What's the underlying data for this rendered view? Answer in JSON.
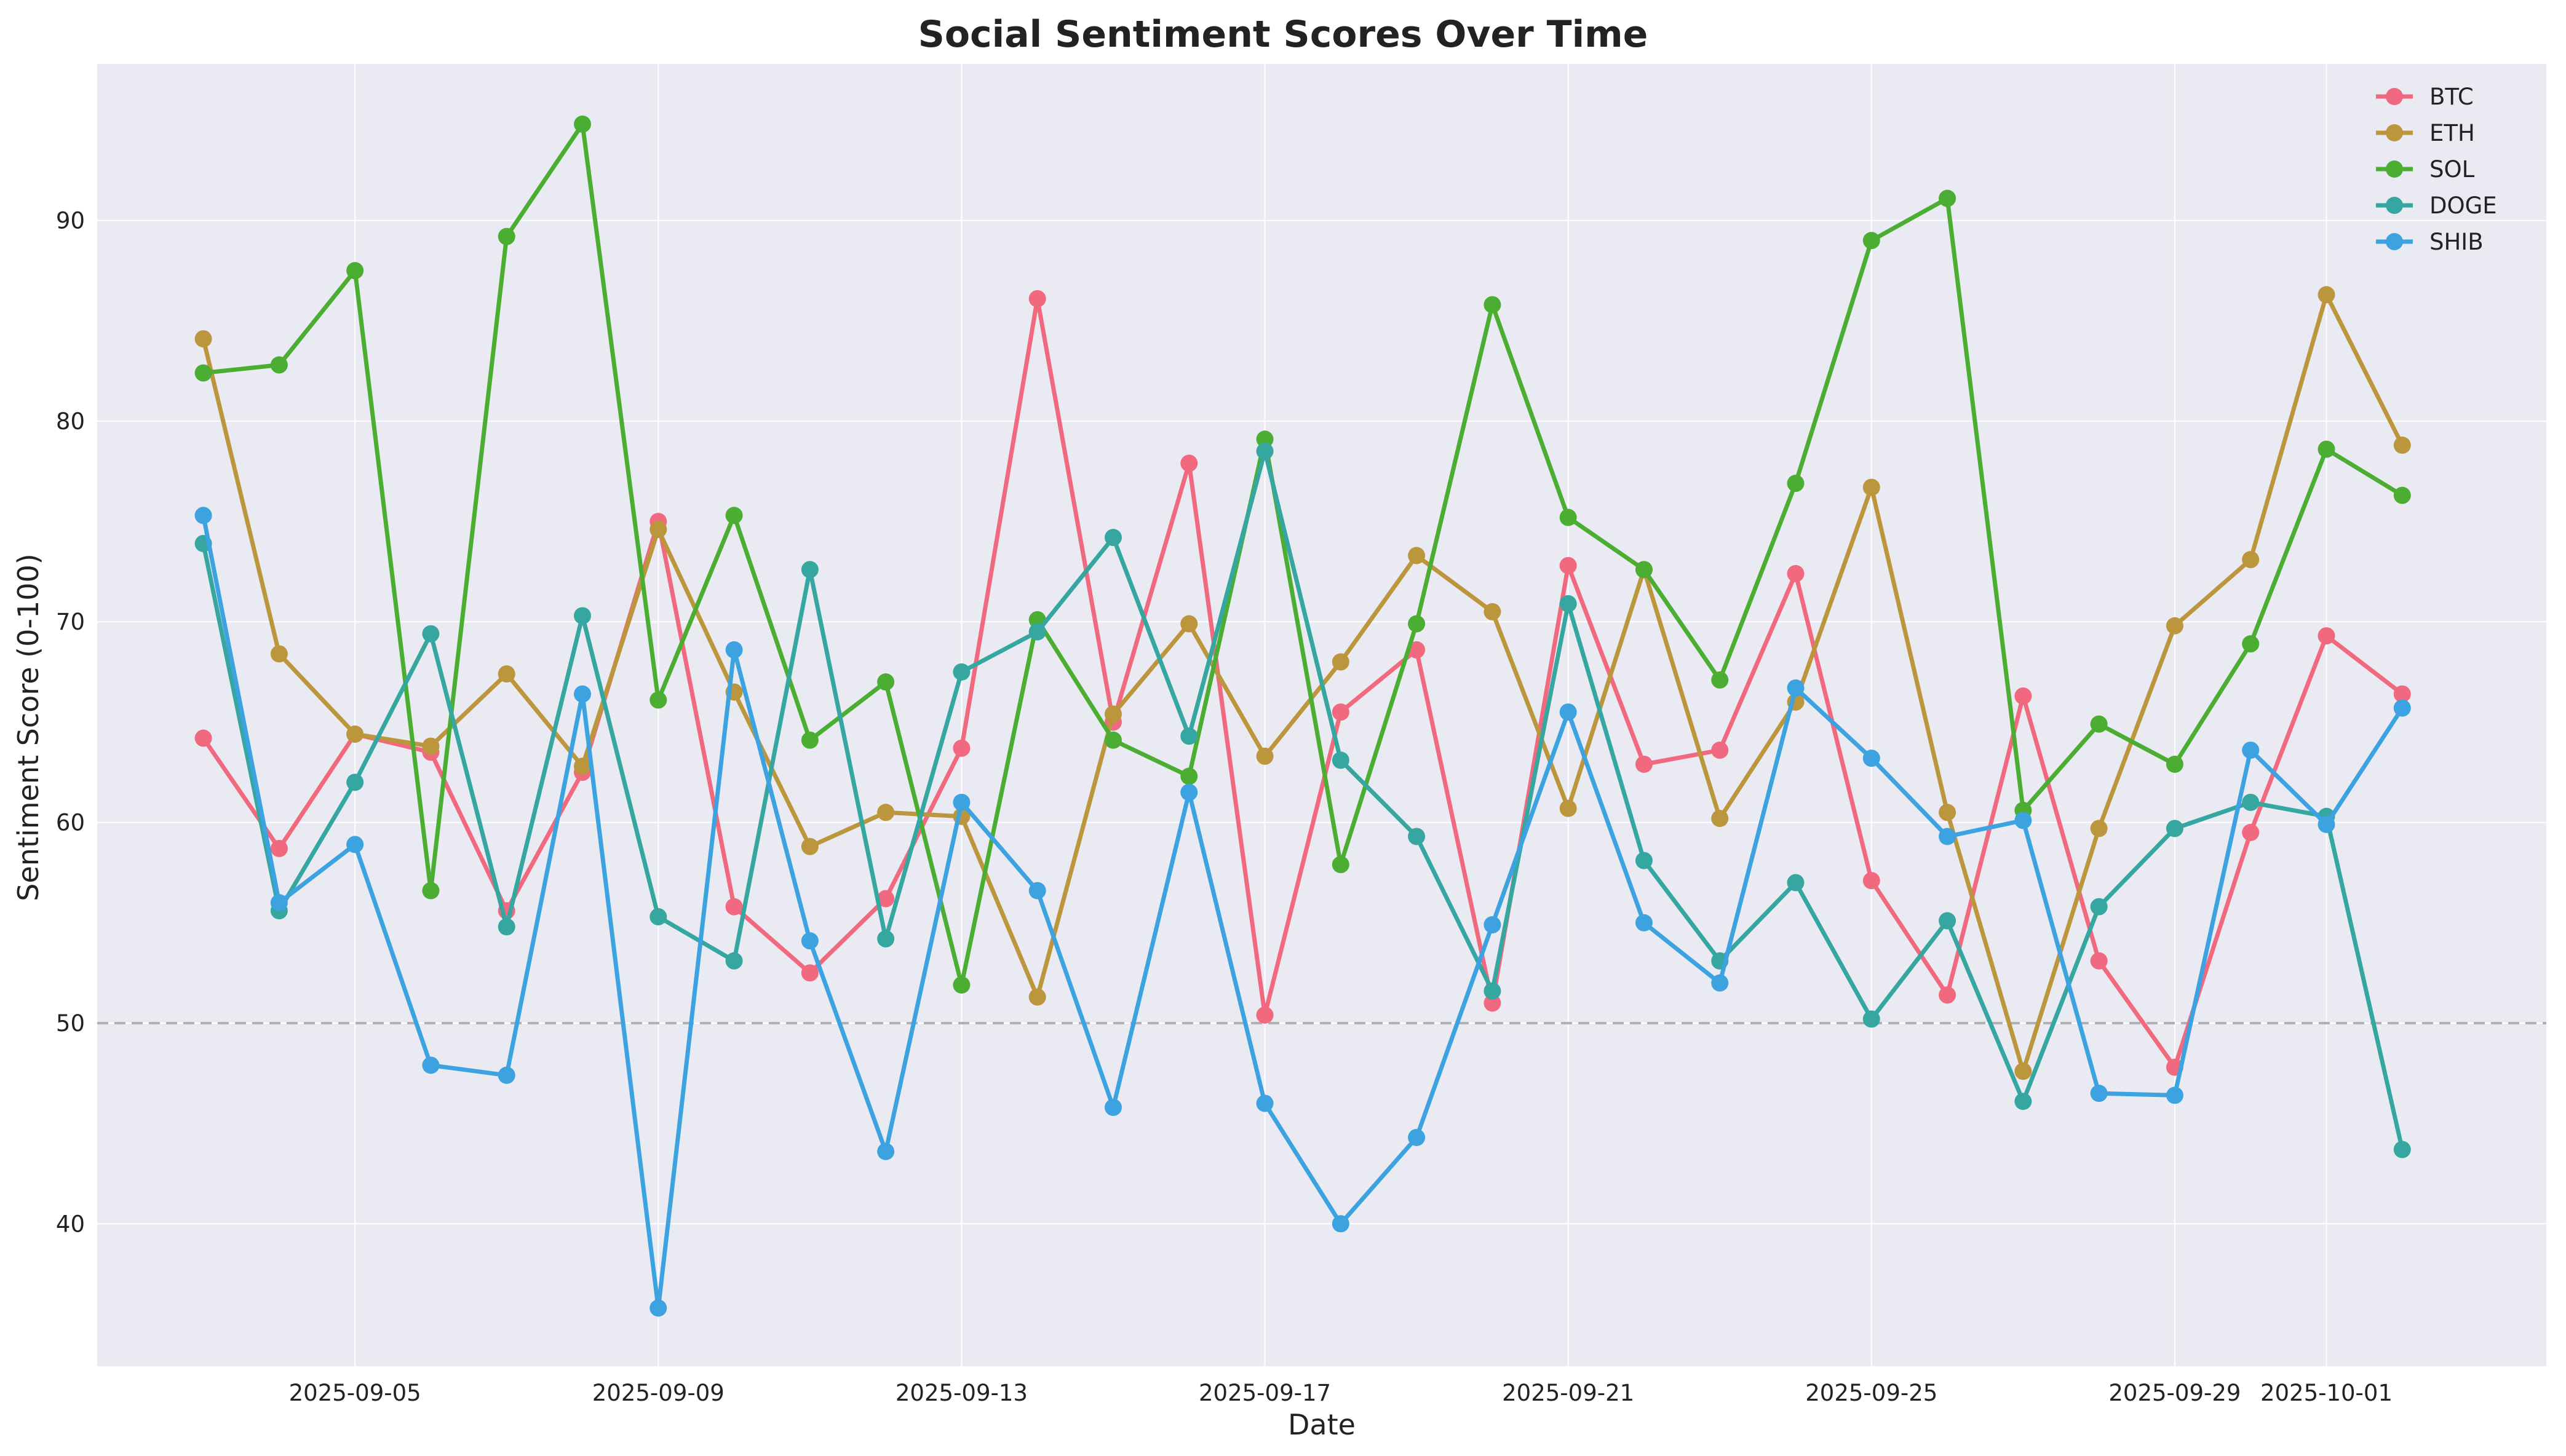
{
  "chart_data": {
    "type": "line",
    "title": "Social Sentiment Scores Over Time",
    "xlabel": "Date",
    "ylabel": "Sentiment Score (0-100)",
    "x": [
      "2025-09-03",
      "2025-09-04",
      "2025-09-05",
      "2025-09-06",
      "2025-09-07",
      "2025-09-08",
      "2025-09-09",
      "2025-09-10",
      "2025-09-11",
      "2025-09-12",
      "2025-09-13",
      "2025-09-14",
      "2025-09-15",
      "2025-09-16",
      "2025-09-17",
      "2025-09-18",
      "2025-09-19",
      "2025-09-20",
      "2025-09-21",
      "2025-09-22",
      "2025-09-23",
      "2025-09-24",
      "2025-09-25",
      "2025-09-26",
      "2025-09-27",
      "2025-09-28",
      "2025-09-29",
      "2025-09-30",
      "2025-10-01",
      "2025-10-02"
    ],
    "xlim": [
      "2025-09-01T14:24",
      "2025-10-03T21:36"
    ],
    "x_ticks": [
      {
        "date": "2025-09-05",
        "label": "2025-09-05"
      },
      {
        "date": "2025-09-09",
        "label": "2025-09-09"
      },
      {
        "date": "2025-09-13",
        "label": "2025-09-13"
      },
      {
        "date": "2025-09-17",
        "label": "2025-09-17"
      },
      {
        "date": "2025-09-21",
        "label": "2025-09-21"
      },
      {
        "date": "2025-09-25",
        "label": "2025-09-25"
      },
      {
        "date": "2025-09-29",
        "label": "2025-09-29"
      },
      {
        "date": "2025-10-01",
        "label": "2025-10-01"
      }
    ],
    "ylim": [
      32.9,
      97.8
    ],
    "y_ticks": [
      40,
      50,
      60,
      70,
      80,
      90
    ],
    "grid": true,
    "background": "#eaeaf2",
    "legend_position": "top-right",
    "reference_line": {
      "y": 50,
      "style": "dashed",
      "color": "#b0b0b0"
    },
    "series": [
      {
        "name": "BTC",
        "color": "#f0697f",
        "values": [
          64.2,
          58.7,
          64.4,
          63.5,
          55.6,
          62.5,
          75.0,
          55.8,
          52.5,
          56.2,
          63.7,
          86.1,
          65.0,
          77.9,
          50.4,
          65.5,
          68.6,
          51.0,
          72.8,
          62.9,
          63.6,
          72.4,
          57.1,
          51.4,
          66.3,
          53.1,
          47.8,
          59.5,
          69.3,
          66.4
        ]
      },
      {
        "name": "ETH",
        "color": "#bc963c",
        "values": [
          84.1,
          68.4,
          64.4,
          63.8,
          67.4,
          62.8,
          74.6,
          66.5,
          58.8,
          60.5,
          60.3,
          51.3,
          65.4,
          69.9,
          63.3,
          68.0,
          73.3,
          70.5,
          60.7,
          72.6,
          60.2,
          66.0,
          76.7,
          60.5,
          47.6,
          59.7,
          69.8,
          73.1,
          86.3,
          78.8
        ]
      },
      {
        "name": "SOL",
        "color": "#4cad33",
        "values": [
          82.4,
          82.8,
          87.5,
          56.6,
          89.2,
          94.8,
          66.1,
          75.3,
          64.1,
          67.0,
          51.9,
          70.1,
          64.1,
          62.3,
          79.1,
          57.9,
          69.9,
          85.8,
          75.2,
          72.6,
          67.1,
          76.9,
          89.0,
          91.1,
          60.6,
          64.9,
          62.9,
          68.9,
          78.6,
          76.3
        ]
      },
      {
        "name": "DOGE",
        "color": "#36a6a0",
        "values": [
          73.9,
          55.6,
          62.0,
          69.4,
          54.8,
          70.3,
          55.3,
          53.1,
          72.6,
          54.2,
          67.5,
          69.5,
          74.2,
          64.3,
          78.5,
          63.1,
          59.3,
          51.6,
          70.9,
          58.1,
          53.1,
          57.0,
          50.2,
          55.1,
          46.1,
          55.8,
          59.7,
          61.0,
          60.3,
          43.7
        ]
      },
      {
        "name": "SHIB",
        "color": "#3ca2e0",
        "values": [
          75.3,
          56.0,
          58.9,
          47.9,
          47.4,
          66.4,
          35.8,
          68.6,
          54.1,
          43.6,
          61.0,
          56.6,
          45.8,
          61.5,
          46.0,
          40.0,
          44.3,
          54.9,
          65.5,
          55.0,
          52.0,
          66.7,
          63.2,
          59.3,
          60.1,
          46.5,
          46.4,
          63.6,
          59.9,
          65.7
        ]
      }
    ]
  }
}
